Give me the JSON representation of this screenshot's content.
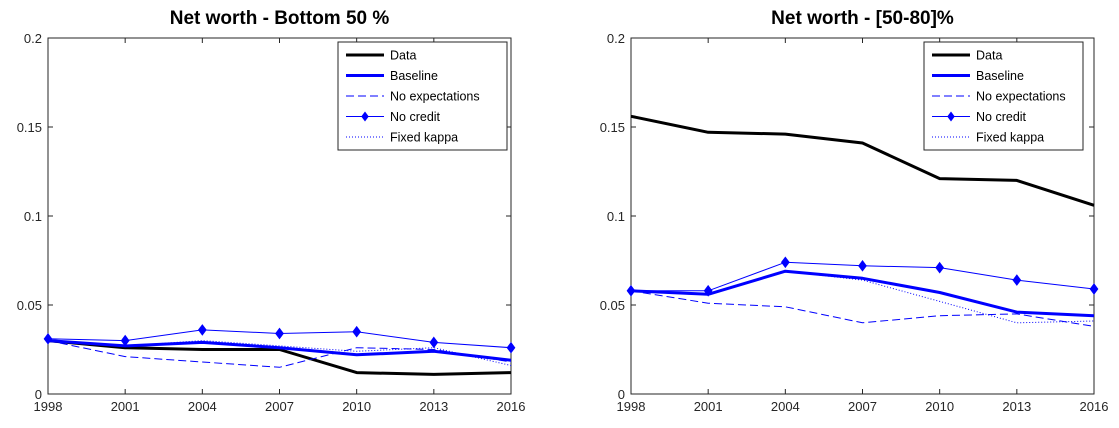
{
  "chart_data": [
    {
      "type": "line",
      "title": "Net worth - Bottom 50 %",
      "xlabel": "",
      "ylabel": "",
      "x": [
        1998,
        2001,
        2004,
        2007,
        2010,
        2013,
        2016
      ],
      "x_tick_labels": [
        "1998",
        "2001",
        "2004",
        "2007",
        "2010",
        "2013",
        "2016"
      ],
      "xlim": [
        1998,
        2016
      ],
      "ylim": [
        0,
        0.2
      ],
      "y_ticks": [
        0,
        0.05,
        0.1,
        0.15,
        0.2
      ],
      "y_tick_labels": [
        "0",
        "0.05",
        "0.1",
        "0.15",
        "0.2"
      ],
      "grid": false,
      "legend_position": "top-right",
      "series": [
        {
          "name": "Data",
          "style": "data",
          "values": [
            0.03,
            0.026,
            0.025,
            0.025,
            0.012,
            0.011,
            0.012
          ]
        },
        {
          "name": "Baseline",
          "style": "baseline",
          "values": [
            0.03,
            0.027,
            0.029,
            0.026,
            0.022,
            0.024,
            0.019
          ]
        },
        {
          "name": "No expectations",
          "style": "noexp",
          "values": [
            0.03,
            0.021,
            0.018,
            0.015,
            0.026,
            0.025,
            0.018
          ]
        },
        {
          "name": "No credit",
          "style": "nocredit",
          "values": [
            0.031,
            0.03,
            0.036,
            0.034,
            0.035,
            0.029,
            0.026
          ]
        },
        {
          "name": "Fixed kappa",
          "style": "fixed",
          "values": [
            0.03,
            0.027,
            0.03,
            0.027,
            0.024,
            0.026,
            0.016
          ]
        }
      ]
    },
    {
      "type": "line",
      "title": "Net worth - [50-80]%",
      "xlabel": "",
      "ylabel": "",
      "x": [
        1998,
        2001,
        2004,
        2007,
        2010,
        2013,
        2016
      ],
      "x_tick_labels": [
        "1998",
        "2001",
        "2004",
        "2007",
        "2010",
        "2013",
        "2016"
      ],
      "xlim": [
        1998,
        2016
      ],
      "ylim": [
        0,
        0.2
      ],
      "y_ticks": [
        0,
        0.05,
        0.1,
        0.15,
        0.2
      ],
      "y_tick_labels": [
        "0",
        "0.05",
        "0.1",
        "0.15",
        "0.2"
      ],
      "grid": false,
      "legend_position": "top-right",
      "series": [
        {
          "name": "Data",
          "style": "data",
          "values": [
            0.156,
            0.147,
            0.146,
            0.141,
            0.121,
            0.12,
            0.106
          ]
        },
        {
          "name": "Baseline",
          "style": "baseline",
          "values": [
            0.058,
            0.056,
            0.069,
            0.065,
            0.057,
            0.046,
            0.044
          ]
        },
        {
          "name": "No expectations",
          "style": "noexp",
          "values": [
            0.058,
            0.051,
            0.049,
            0.04,
            0.044,
            0.045,
            0.038
          ]
        },
        {
          "name": "No credit",
          "style": "nocredit",
          "values": [
            0.058,
            0.058,
            0.074,
            0.072,
            0.071,
            0.064,
            0.059
          ]
        },
        {
          "name": "Fixed kappa",
          "style": "fixed",
          "values": [
            0.058,
            0.056,
            0.069,
            0.064,
            0.052,
            0.04,
            0.041
          ]
        }
      ]
    }
  ]
}
